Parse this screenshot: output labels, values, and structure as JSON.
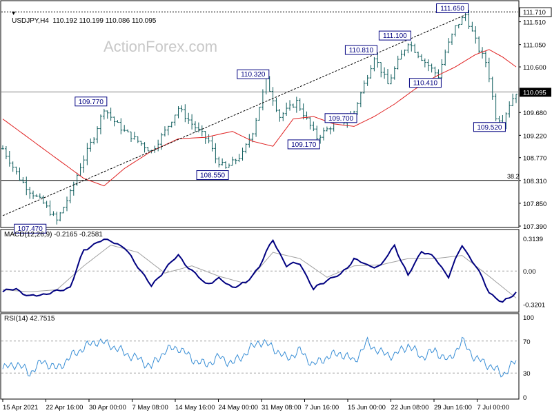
{
  "colors": {
    "background": "#ffffff",
    "grid_frame": "#000000",
    "candle": "#0d5c5c",
    "ema": "#e02020",
    "macd_line": "#000080",
    "macd_signal": "#a0a0a0",
    "rsi": "#3a8fd6",
    "last_price_box": "#000000",
    "watermark": "#c8c8c8"
  },
  "header": {
    "title": "USDJPY,H4  110.192 110.199 110.086 110.095",
    "watermark": "ActionForex.com"
  },
  "macd_header": "MACD(12,26,9) -0.2165 -0.2581",
  "rsi_header": "RSI(14) 42.7515",
  "chart_data": [
    {
      "type": "candlestick",
      "name": "USDJPY H4",
      "last_price": "110.095",
      "ylim": [
        107.39,
        111.81
      ],
      "y_ticks": [
        "111.710",
        "111.510",
        "111.050",
        "110.600",
        "110.095",
        "109.680",
        "109.220",
        "108.770",
        "108.310",
        "107.850",
        "107.390"
      ],
      "y_tick_values": [
        111.71,
        111.51,
        111.05,
        110.6,
        110.095,
        109.68,
        109.22,
        108.77,
        108.31,
        107.85,
        107.39
      ],
      "x_ticks": [
        "15 Apr 2021",
        "22 Apr 16:00",
        "30 Apr 00:00",
        "7 May 08:00",
        "14 May 16:00",
        "24 May 00:00",
        "31 May 08:00",
        "7 Jun 16:00",
        "15 Jun 00:00",
        "22 Jun 08:00",
        "29 Jun 16:00",
        "7 Jul 00:00"
      ],
      "close_series_anchors": {
        "t": [
          0,
          5,
          8,
          12,
          16,
          20,
          23,
          27,
          30,
          33,
          36,
          40,
          44,
          48,
          52,
          56,
          61,
          63,
          66,
          71,
          74,
          78,
          82,
          87,
          93,
          98,
          101,
          104,
          107,
          110,
          114,
          117,
          120,
          125,
          129,
          131,
          134,
          137,
          139,
          141,
          143
        ],
        "v": [
          108.95,
          108.35,
          108.1,
          107.85,
          107.5,
          108.05,
          108.6,
          109.2,
          109.77,
          109.5,
          109.3,
          109.1,
          108.9,
          109.3,
          109.77,
          109.45,
          109.1,
          108.75,
          108.55,
          108.85,
          109.3,
          110.32,
          109.6,
          109.9,
          109.17,
          109.45,
          109.5,
          109.7,
          110.25,
          110.81,
          110.25,
          110.7,
          111.1,
          110.7,
          110.41,
          110.9,
          111.4,
          111.65,
          111.3,
          110.95,
          110.7
        ]
      },
      "close_series_anchors_tail": {
        "t": [
          144,
          146,
          148,
          150,
          152
        ],
        "v": [
          110.4,
          109.6,
          109.52,
          109.85,
          110.095
        ]
      },
      "ema_anchors": {
        "t": [
          0,
          8,
          16,
          24,
          30,
          36,
          44,
          52,
          60,
          68,
          74,
          80,
          86,
          92,
          98,
          104,
          110,
          116,
          122,
          128,
          134,
          140,
          144,
          148,
          152
        ],
        "v": [
          109.55,
          109.15,
          108.75,
          108.35,
          108.2,
          108.55,
          108.9,
          109.15,
          109.18,
          109.3,
          109.1,
          109.0,
          109.55,
          109.6,
          109.45,
          109.4,
          109.6,
          109.85,
          110.15,
          110.4,
          110.6,
          110.85,
          110.95,
          110.8,
          110.6
        ]
      },
      "support_line_level": 110.095,
      "fib_line_level": 108.31,
      "fib_label": "38.2",
      "resistance_line_level": 111.71,
      "annotations": [
        {
          "label": "107.470",
          "t": 12,
          "v": 107.47,
          "pos": "below"
        },
        {
          "label": "109.770",
          "t": 30,
          "v": 109.77,
          "pos": "above"
        },
        {
          "label": "108.550",
          "t": 66,
          "v": 108.55,
          "pos": "below"
        },
        {
          "label": "110.320",
          "t": 78,
          "v": 110.32,
          "pos": "above"
        },
        {
          "label": "109.170",
          "t": 93,
          "v": 109.17,
          "pos": "below"
        },
        {
          "label": "109.700",
          "t": 104,
          "v": 109.7,
          "pos": "below"
        },
        {
          "label": "110.810",
          "t": 110,
          "v": 110.81,
          "pos": "above"
        },
        {
          "label": "111.100",
          "t": 120,
          "v": 111.1,
          "pos": "above"
        },
        {
          "label": "110.410",
          "t": 129,
          "v": 110.41,
          "pos": "below"
        },
        {
          "label": "111.650",
          "t": 137,
          "v": 111.65,
          "pos": "above"
        },
        {
          "label": "109.520",
          "t": 148,
          "v": 109.52,
          "pos": "below"
        }
      ],
      "trendlines": [
        {
          "from": {
            "t": 0,
            "v": 107.6
          },
          "to": {
            "t": 137,
            "v": 111.65
          }
        }
      ]
    },
    {
      "type": "line",
      "name": "MACD(12,26,9)",
      "values_header": "-0.2165 -0.2581",
      "ylim": [
        -0.37,
        0.36
      ],
      "y_ticks": [
        "0.3139",
        "0.00",
        "-0.3201"
      ],
      "y_tick_values": [
        0.3139,
        0.0,
        -0.3201
      ],
      "series": [
        {
          "anchors_t": [
            0,
            4,
            8,
            12,
            16,
            20,
            24,
            28,
            32,
            36,
            40,
            44,
            48,
            52,
            56,
            60,
            64,
            68,
            72,
            76,
            80,
            84,
            88,
            92,
            96,
            100,
            104,
            108,
            112,
            116,
            120,
            124,
            128,
            132,
            136,
            140,
            144,
            148,
            152
          ],
          "anchors_v": [
            -0.2,
            -0.17,
            -0.25,
            -0.22,
            -0.2,
            -0.15,
            0.2,
            0.28,
            0.3,
            0.22,
            0.05,
            -0.15,
            0.02,
            0.15,
            0.0,
            -0.12,
            -0.08,
            -0.15,
            -0.12,
            0.05,
            0.3,
            0.05,
            0.08,
            -0.18,
            -0.08,
            -0.04,
            0.12,
            0.05,
            0.05,
            0.25,
            -0.05,
            0.2,
            0.12,
            -0.05,
            0.25,
            0.05,
            -0.2,
            -0.31,
            -0.2
          ]
        },
        {
          "anchors_t": [
            0,
            8,
            16,
            24,
            32,
            40,
            48,
            56,
            64,
            72,
            80,
            88,
            96,
            104,
            112,
            120,
            128,
            136,
            144,
            152
          ],
          "anchors_v": [
            -0.18,
            -0.2,
            -0.18,
            0.05,
            0.25,
            0.18,
            -0.02,
            0.05,
            -0.05,
            -0.12,
            0.18,
            0.12,
            -0.06,
            0.05,
            0.06,
            0.12,
            0.12,
            0.15,
            -0.05,
            -0.26
          ]
        }
      ]
    },
    {
      "type": "line",
      "name": "RSI(14)",
      "value_header": "42.7515",
      "ylim": [
        0,
        100
      ],
      "y_ticks": [
        "100",
        "70",
        "30",
        "0"
      ],
      "y_tick_values": [
        100,
        70,
        30,
        0
      ],
      "anchors_t": [
        0,
        4,
        8,
        12,
        16,
        20,
        24,
        28,
        32,
        36,
        40,
        44,
        48,
        52,
        56,
        60,
        64,
        68,
        72,
        76,
        80,
        84,
        88,
        92,
        96,
        100,
        104,
        108,
        112,
        116,
        120,
        124,
        128,
        132,
        136,
        140,
        144,
        148,
        152
      ],
      "anchors_v": [
        35,
        42,
        30,
        45,
        35,
        50,
        62,
        70,
        65,
        55,
        48,
        38,
        58,
        62,
        48,
        40,
        50,
        42,
        55,
        70,
        62,
        48,
        58,
        40,
        50,
        55,
        45,
        68,
        55,
        52,
        65,
        50,
        58,
        45,
        70,
        48,
        40,
        28,
        45
      ]
    }
  ]
}
